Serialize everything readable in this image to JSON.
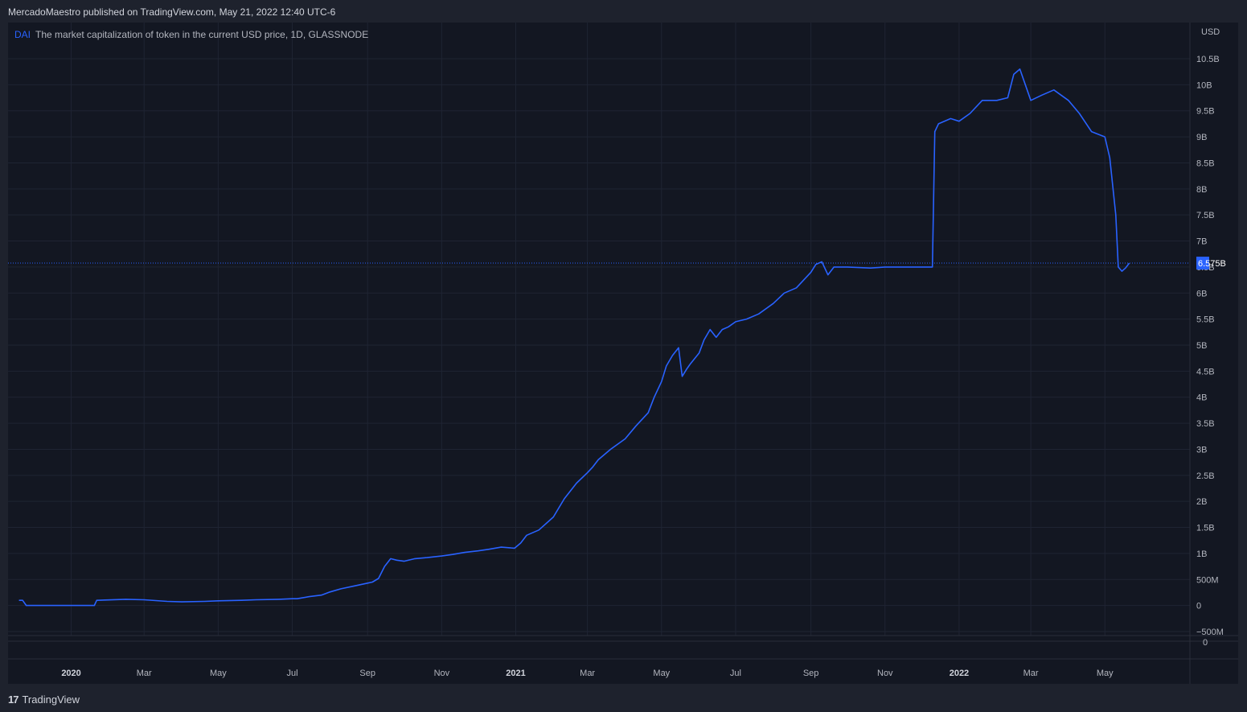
{
  "header": {
    "publish_line": "MercadoMaestro published on TradingView.com, May 21, 2022 12:40 UTC-6"
  },
  "legend": {
    "symbol": "DAI",
    "description": "The market capitalization of token in the current USD price, 1D, GLASSNODE"
  },
  "footer": {
    "brand": "TradingView",
    "brand_icon": "tradingview-logo-icon"
  },
  "colors": {
    "line": "#2962ff",
    "background": "#131722",
    "grid": "#1f2433",
    "price_label_bg": "#2962ff"
  },
  "chart_data": {
    "type": "line",
    "series": [
      {
        "name": "DAI",
        "x": [
          "2019-11-19",
          "2019-11-22",
          "2019-11-25",
          "2019-12-20",
          "2020-01-10",
          "2020-01-20",
          "2020-01-22",
          "2020-02-15",
          "2020-03-01",
          "2020-03-20",
          "2020-04-01",
          "2020-04-20",
          "2020-05-01",
          "2020-05-20",
          "2020-06-01",
          "2020-06-20",
          "2020-07-01",
          "2020-07-05",
          "2020-07-15",
          "2020-07-25",
          "2020-08-01",
          "2020-08-10",
          "2020-08-20",
          "2020-09-01",
          "2020-09-05",
          "2020-09-10",
          "2020-09-15",
          "2020-09-20",
          "2020-09-25",
          "2020-10-01",
          "2020-10-10",
          "2020-10-20",
          "2020-11-01",
          "2020-11-10",
          "2020-11-20",
          "2020-12-01",
          "2020-12-10",
          "2020-12-20",
          "2020-12-31",
          "2021-01-05",
          "2021-01-10",
          "2021-01-20",
          "2021-02-01",
          "2021-02-10",
          "2021-02-20",
          "2021-03-01",
          "2021-03-05",
          "2021-03-10",
          "2021-03-20",
          "2021-04-01",
          "2021-04-10",
          "2021-04-20",
          "2021-04-25",
          "2021-05-01",
          "2021-05-05",
          "2021-05-10",
          "2021-05-15",
          "2021-05-18",
          "2021-05-22",
          "2021-05-25",
          "2021-06-01",
          "2021-06-05",
          "2021-06-10",
          "2021-06-15",
          "2021-06-20",
          "2021-06-25",
          "2021-07-01",
          "2021-07-10",
          "2021-07-20",
          "2021-08-01",
          "2021-08-10",
          "2021-08-20",
          "2021-09-01",
          "2021-09-05",
          "2021-09-10",
          "2021-09-15",
          "2021-09-20",
          "2021-10-01",
          "2021-10-20",
          "2021-11-01",
          "2021-11-15",
          "2021-11-25",
          "2021-12-10",
          "2021-12-12",
          "2021-12-15",
          "2021-12-25",
          "2022-01-01",
          "2022-01-10",
          "2022-01-20",
          "2022-02-01",
          "2022-02-10",
          "2022-02-15",
          "2022-02-20",
          "2022-03-01",
          "2022-03-10",
          "2022-03-20",
          "2022-04-01",
          "2022-04-10",
          "2022-04-20",
          "2022-05-01",
          "2022-05-05",
          "2022-05-10",
          "2022-05-12",
          "2022-05-15",
          "2022-05-18",
          "2022-05-21"
        ],
        "y": [
          0.1,
          0.1,
          0.0,
          0.0,
          0.0,
          0.0,
          0.1,
          0.12,
          0.11,
          0.08,
          0.07,
          0.08,
          0.09,
          0.1,
          0.11,
          0.12,
          0.13,
          0.13,
          0.17,
          0.2,
          0.26,
          0.32,
          0.37,
          0.43,
          0.45,
          0.52,
          0.75,
          0.9,
          0.87,
          0.85,
          0.9,
          0.92,
          0.95,
          0.98,
          1.02,
          1.05,
          1.08,
          1.12,
          1.1,
          1.2,
          1.35,
          1.45,
          1.7,
          2.05,
          2.35,
          2.55,
          2.65,
          2.8,
          3.0,
          3.2,
          3.45,
          3.7,
          4.0,
          4.3,
          4.6,
          4.8,
          4.95,
          4.4,
          4.55,
          4.65,
          4.85,
          5.1,
          5.3,
          5.15,
          5.3,
          5.35,
          5.45,
          5.5,
          5.6,
          5.8,
          6.0,
          6.1,
          6.4,
          6.55,
          6.6,
          6.35,
          6.5,
          6.5,
          6.48,
          6.5,
          6.5,
          6.5,
          6.5,
          9.1,
          9.25,
          9.35,
          9.3,
          9.45,
          9.7,
          9.7,
          9.75,
          10.2,
          10.3,
          9.7,
          9.8,
          9.9,
          9.7,
          9.45,
          9.1,
          9.0,
          8.6,
          7.5,
          6.5,
          6.42,
          6.48,
          6.575
        ]
      }
    ],
    "last_value_label": "6.575B",
    "x_ticks": [
      {
        "date": "2020-01-01",
        "label": "2020",
        "bold": true
      },
      {
        "date": "2020-03-01",
        "label": "Mar",
        "bold": false
      },
      {
        "date": "2020-05-01",
        "label": "May",
        "bold": false
      },
      {
        "date": "2020-07-01",
        "label": "Jul",
        "bold": false
      },
      {
        "date": "2020-09-01",
        "label": "Sep",
        "bold": false
      },
      {
        "date": "2020-11-01",
        "label": "Nov",
        "bold": false
      },
      {
        "date": "2021-01-01",
        "label": "2021",
        "bold": true
      },
      {
        "date": "2021-03-01",
        "label": "Mar",
        "bold": false
      },
      {
        "date": "2021-05-01",
        "label": "May",
        "bold": false
      },
      {
        "date": "2021-07-01",
        "label": "Jul",
        "bold": false
      },
      {
        "date": "2021-09-01",
        "label": "Sep",
        "bold": false
      },
      {
        "date": "2021-11-01",
        "label": "Nov",
        "bold": false
      },
      {
        "date": "2022-01-01",
        "label": "2022",
        "bold": true
      },
      {
        "date": "2022-03-01",
        "label": "Mar",
        "bold": false
      },
      {
        "date": "2022-05-01",
        "label": "May",
        "bold": false
      }
    ],
    "y_unit": "USD",
    "y_ticks": [
      {
        "value": 10.5,
        "label": "10.5B"
      },
      {
        "value": 10,
        "label": "10B"
      },
      {
        "value": 9.5,
        "label": "9.5B"
      },
      {
        "value": 9,
        "label": "9B"
      },
      {
        "value": 8.5,
        "label": "8.5B"
      },
      {
        "value": 8,
        "label": "8B"
      },
      {
        "value": 7.5,
        "label": "7.5B"
      },
      {
        "value": 7,
        "label": "7B"
      },
      {
        "value": 6.5,
        "label": "6.5B"
      },
      {
        "value": 6,
        "label": "6B"
      },
      {
        "value": 5.5,
        "label": "5.5B"
      },
      {
        "value": 5,
        "label": "5B"
      },
      {
        "value": 4.5,
        "label": "4.5B"
      },
      {
        "value": 4,
        "label": "4B"
      },
      {
        "value": 3.5,
        "label": "3.5B"
      },
      {
        "value": 3,
        "label": "3B"
      },
      {
        "value": 2.5,
        "label": "2.5B"
      },
      {
        "value": 2,
        "label": "2B"
      },
      {
        "value": 1.5,
        "label": "1.5B"
      },
      {
        "value": 1,
        "label": "1B"
      },
      {
        "value": 0.5,
        "label": "500M"
      },
      {
        "value": 0,
        "label": "0"
      },
      {
        "value": -0.5,
        "label": "−500M"
      }
    ],
    "secondary_y_label": "0",
    "ylim": [
      -0.5,
      10.5
    ],
    "xlim": [
      "2019-11-10",
      "2022-07-10"
    ],
    "grid": true
  }
}
